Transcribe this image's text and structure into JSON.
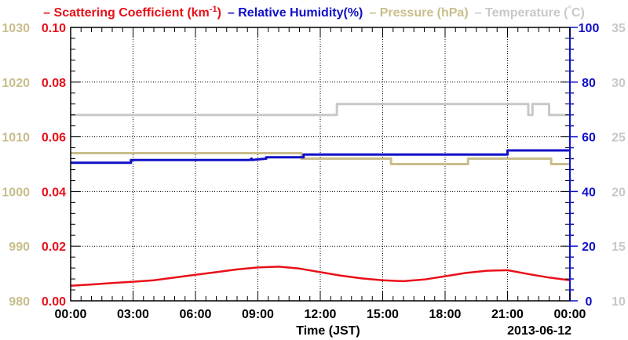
{
  "chart_data": {
    "type": "line",
    "xlabel": "Time (JST)",
    "date_label": "2013-06-12",
    "x_ticks": [
      "00:00",
      "03:00",
      "06:00",
      "09:00",
      "12:00",
      "15:00",
      "18:00",
      "21:00",
      "00:00"
    ],
    "x_range_hours": [
      0,
      24
    ],
    "grid": true,
    "legend": [
      {
        "name": "Scattering Coefficient (km",
        "sup": "-1",
        "suffix": ")",
        "color": "#e8101a"
      },
      {
        "name": "Relative Humidity(%)",
        "color": "#1010c8"
      },
      {
        "name": "Pressure (hPa)",
        "color": "#c8be8c"
      },
      {
        "name": "Temperature (",
        "sup": "°",
        "suffix": "C)",
        "color": "#c8c8c8"
      }
    ],
    "axes": {
      "scattering": {
        "range": [
          0,
          0.1
        ],
        "ticks": [
          "0.00",
          "0.02",
          "0.04",
          "0.06",
          "0.08",
          "0.10"
        ],
        "color": "#e8101a"
      },
      "pressure": {
        "range": [
          980,
          1030
        ],
        "ticks": [
          "980",
          "990",
          "1000",
          "1010",
          "1020",
          "1030"
        ],
        "color": "#c8be8c"
      },
      "humidity": {
        "range": [
          0,
          100
        ],
        "ticks": [
          "0",
          "20",
          "40",
          "60",
          "80",
          "100"
        ],
        "color": "#1010c8"
      },
      "temperature": {
        "range": [
          10,
          35
        ],
        "ticks": [
          "10",
          "15",
          "20",
          "25",
          "30",
          "35"
        ],
        "color": "#c8c8c8"
      }
    },
    "series": [
      {
        "name": "Scattering Coefficient",
        "axis": "scattering",
        "x_hours": [
          0,
          1,
          2,
          3,
          4,
          5,
          6,
          7,
          8,
          9,
          10,
          11,
          12,
          13,
          14,
          15,
          16,
          17,
          18,
          19,
          20,
          21,
          22,
          23,
          24
        ],
        "values": [
          0.0055,
          0.006,
          0.0065,
          0.007,
          0.0075,
          0.0085,
          0.0095,
          0.0105,
          0.0115,
          0.0122,
          0.0125,
          0.0118,
          0.0105,
          0.0092,
          0.0082,
          0.0075,
          0.0072,
          0.0078,
          0.009,
          0.0102,
          0.011,
          0.0112,
          0.0098,
          0.0085,
          0.0075
        ]
      },
      {
        "name": "Relative Humidity",
        "axis": "humidity",
        "x_hours": [
          0,
          2.9,
          2.9,
          8.6,
          8.7,
          8.7,
          9.4,
          9.4,
          11.2,
          11.2,
          21.0,
          21.0,
          24.0
        ],
        "values": [
          50.5,
          50.5,
          51.5,
          51.5,
          52.0,
          51.5,
          52.0,
          52.5,
          52.5,
          53.5,
          53.5,
          55.0,
          55.0
        ]
      },
      {
        "name": "Pressure",
        "axis": "pressure",
        "x_hours": [
          0,
          11.1,
          11.1,
          15.4,
          15.4,
          19.1,
          19.1,
          23.1,
          23.1,
          24.0
        ],
        "values": [
          1007,
          1007,
          1006,
          1006,
          1005,
          1005,
          1006,
          1006,
          1005,
          1005
        ]
      },
      {
        "name": "Temperature",
        "axis": "temperature",
        "x_hours": [
          0,
          12.8,
          12.8,
          22.0,
          22.0,
          22.2,
          22.2,
          23.0,
          23.0,
          24.0
        ],
        "values": [
          27,
          27,
          28,
          28,
          27,
          27,
          28,
          28,
          27,
          27
        ]
      }
    ]
  }
}
